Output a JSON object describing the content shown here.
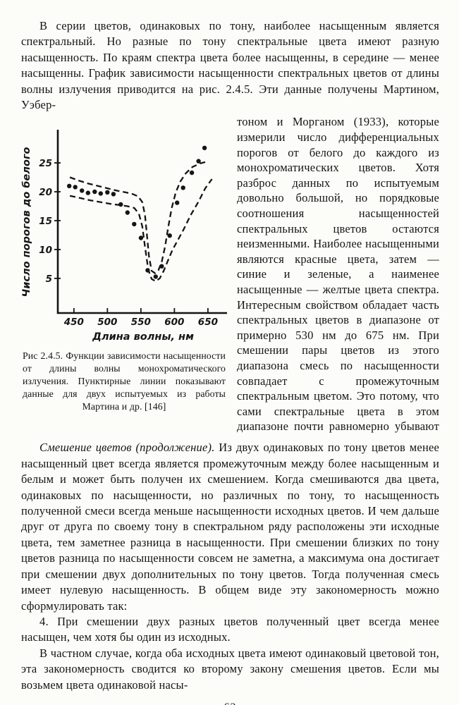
{
  "page_number": "62",
  "paragraphs": {
    "intro": "В серии цветов, одинаковых по тону, наиболее насыщенным является спектральный. Но разные по тону спектральные цвета имеют разную насыщенность. По краям спектра цвета более насыщенны, в середине — менее насыщенны. График зависимости насыщенности спектральных цветов от длины волны излучения приводится на рис. 2.4.5. Эти данные получены Мартином, Уэбер-",
    "right_column": "тоном и Морганом (1933), которые измерили число дифференциальных порогов от белого до каждого из монохроматических цветов. Хотя разброс данных по испытуемым довольно большой, но порядковые соотношения насыщенностей спектральных цветов остаются неизменными. Наиболее насыщенными являются красные цвета, затем — синие и зеленые, а наименее насыщенные — желтые цвета спектра. Интересным свойством обладает часть спектральных цветов в диапазоне от примерно 530 нм до 675 нм. При смешении пары цветов из этого диапазона смесь по насыщенности совпадает с промежуточным спектральным цветом. Это потому, что сами спектральные цвета в этом диапазоне почти равномерно убывают по насыщенности от краев к середине (570—580 нм).",
    "mixing_lead": "Смешение цветов (продолжение).",
    "mixing_body": "Из двух одинаковых по тону цветов менее насыщенный цвет всегда является промежуточным между более насыщенным и белым и может быть получен их смешением. Когда смешиваются два цвета, одинаковых по насыщенности, но различных по тону, то насыщенность полученной смеси всегда меньше насыщенности исходных цветов. И чем дальше друг от друга по своему тону в спектральном ряду расположены эти исходные цвета, тем заметнее разница в насыщенности. При смешении близких по тону цветов разница по насыщенности совсем не заметна, а максимума она достигает при смешении двух дополнительных по тону цветов. Тогда полученная смесь имеет нулевую насыщенность. В общем виде эту закономерность можно сформулировать так:",
    "rule4": "4. При смешении двух разных цветов полученный цвет всегда менее насыщен, чем хотя бы один из исходных.",
    "particular": "В частном случае, когда оба исходных цвета имеют одинаковый цветовой тон, эта закономерность сводится ко второму закону смешения цветов. Если мы возьмем цвета одинаковой насы-"
  },
  "figure": {
    "caption": "Рис 2.4.5. Функции зависимости насыщенности от длины волны монохроматического излучения. Пунктирные линии показывают данные для двух испытуемых из работы Мартина и др. [146]"
  },
  "chart_data": {
    "type": "scatter",
    "title": "",
    "xlabel": "Длина волны, нм",
    "ylabel": "Число порогов до белого",
    "xlim": [
      426,
      668
    ],
    "ylim": [
      -1,
      30.5
    ],
    "x_ticks": [
      450,
      500,
      550,
      600,
      650
    ],
    "y_ticks": [
      5,
      10,
      15,
      20,
      25
    ],
    "grid": false,
    "legend": "none",
    "ink_color": "#151515",
    "series": [
      {
        "name": "пороговые измерения (точки)",
        "style": "points",
        "points": [
          [
            443,
            21.0
          ],
          [
            452,
            20.8
          ],
          [
            462,
            20.2
          ],
          [
            471,
            19.8
          ],
          [
            481,
            20.0
          ],
          [
            490,
            19.7
          ],
          [
            500,
            19.9
          ],
          [
            509,
            19.6
          ],
          [
            520,
            17.8
          ],
          [
            530,
            16.4
          ],
          [
            540,
            14.4
          ],
          [
            550,
            12.0
          ],
          [
            560,
            6.4
          ],
          [
            572,
            5.3
          ],
          [
            581,
            7.1
          ],
          [
            593,
            12.4
          ],
          [
            604,
            18.1
          ],
          [
            613,
            20.7
          ],
          [
            626,
            23.3
          ],
          [
            636,
            25.3
          ],
          [
            645,
            27.6
          ]
        ]
      },
      {
        "name": "испытуемый 1 (пунктир)",
        "style": "dashed",
        "points": [
          [
            444,
            22.5
          ],
          [
            458,
            21.9
          ],
          [
            472,
            21.4
          ],
          [
            486,
            21.0
          ],
          [
            500,
            20.6
          ],
          [
            514,
            20.2
          ],
          [
            527,
            19.9
          ],
          [
            538,
            19.6
          ],
          [
            546,
            19.2
          ],
          [
            552,
            18.2
          ],
          [
            556,
            16.0
          ],
          [
            559,
            12.5
          ],
          [
            562,
            8.8
          ],
          [
            566,
            6.3
          ],
          [
            571,
            5.9
          ],
          [
            576,
            6.4
          ],
          [
            581,
            7.8
          ],
          [
            586,
            10.5
          ],
          [
            591,
            14.0
          ],
          [
            596,
            17.2
          ],
          [
            602,
            19.9
          ],
          [
            609,
            21.8
          ],
          [
            617,
            23.2
          ],
          [
            627,
            24.3
          ],
          [
            638,
            24.9
          ],
          [
            651,
            25.3
          ]
        ]
      },
      {
        "name": "испытуемый 2 (пунктир)",
        "style": "dashed",
        "points": [
          [
            444,
            19.3
          ],
          [
            460,
            18.9
          ],
          [
            475,
            18.5
          ],
          [
            490,
            18.2
          ],
          [
            505,
            17.9
          ],
          [
            518,
            17.7
          ],
          [
            530,
            17.5
          ],
          [
            540,
            17.2
          ],
          [
            547,
            16.2
          ],
          [
            552,
            14.0
          ],
          [
            556,
            10.5
          ],
          [
            561,
            6.5
          ],
          [
            566,
            4.9
          ],
          [
            572,
            4.5
          ],
          [
            578,
            5.0
          ],
          [
            584,
            6.3
          ],
          [
            590,
            8.0
          ],
          [
            597,
            9.9
          ],
          [
            604,
            11.4
          ],
          [
            613,
            13.3
          ],
          [
            624,
            15.9
          ],
          [
            636,
            18.3
          ],
          [
            646,
            20.6
          ],
          [
            656,
            22.2
          ]
        ]
      }
    ]
  }
}
